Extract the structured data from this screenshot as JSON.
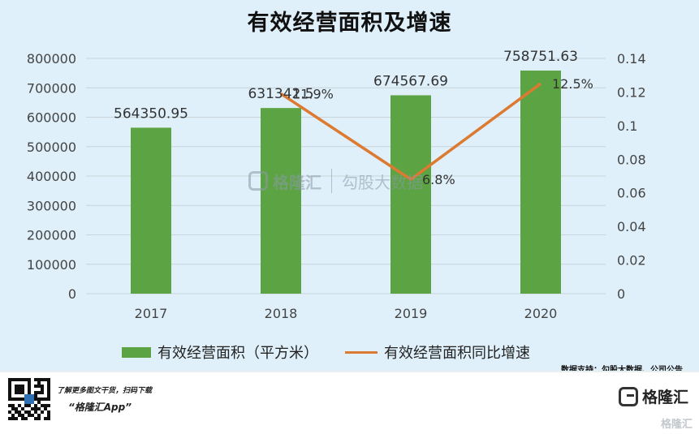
{
  "chart_data": {
    "type": "bar",
    "title": "有效经营面积及增速",
    "categories": [
      "2017",
      "2018",
      "2019",
      "2020"
    ],
    "series": [
      {
        "name": "有效经营面积（平方米）",
        "type": "bar",
        "axis": "left",
        "values": [
          564350.95,
          631342.5,
          674567.69,
          758751.63
        ],
        "data_labels": [
          "564350.95",
          "631342.5",
          "674567.69",
          "758751.63"
        ]
      },
      {
        "name": "有效经营面积同比增速",
        "type": "line",
        "axis": "right",
        "values": [
          null,
          0.119,
          0.068,
          0.125
        ],
        "data_labels": [
          "",
          "11.9%",
          "6.8%",
          "12.5%"
        ]
      }
    ],
    "y_left": {
      "range": [
        0,
        800000
      ],
      "ticks": [
        "0",
        "100000",
        "200000",
        "300000",
        "400000",
        "500000",
        "600000",
        "700000",
        "800000"
      ]
    },
    "y_right": {
      "range": [
        0,
        0.14
      ],
      "ticks": [
        "0",
        "0.02",
        "0.04",
        "0.06",
        "0.08",
        "0.1",
        "0.12",
        "0.14"
      ]
    },
    "grid": true,
    "legend_position": "bottom"
  },
  "colors": {
    "bar": "#5ca343",
    "line": "#dd7a32",
    "grid": "#c8d3da",
    "background": "#dff0fa"
  },
  "source": "数据支持：勾股大数据、公司公告",
  "watermark": {
    "brand": "格隆汇",
    "site": "勾股大数据"
  },
  "footer": {
    "tagline": "了解更多图文干货，扫码下载",
    "app_name": "“格隆汇App”",
    "logo_text": "格隆汇",
    "watermark": "格隆汇"
  }
}
